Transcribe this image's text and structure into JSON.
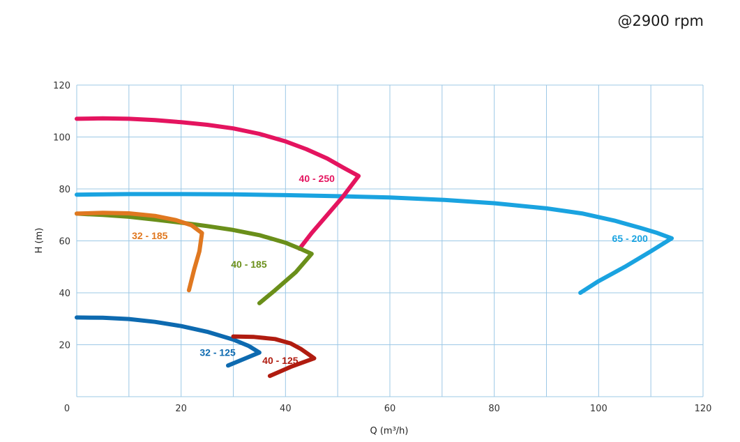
{
  "title": "@2900 rpm",
  "chart_data": {
    "type": "line",
    "xlabel": "Q (m³/h)",
    "ylabel": "H (m)",
    "xlim": [
      0,
      120
    ],
    "ylim": [
      0,
      120
    ],
    "x_ticks": [
      0,
      20,
      40,
      60,
      80,
      100,
      120
    ],
    "y_ticks": [
      20,
      40,
      60,
      80,
      100,
      120
    ],
    "grid": true,
    "series": [
      {
        "name": "65 - 200",
        "color": "#1aa3e0",
        "points": [
          [
            0,
            77.8
          ],
          [
            10,
            78
          ],
          [
            20,
            78
          ],
          [
            30,
            77.9
          ],
          [
            40,
            77.6
          ],
          [
            50,
            77.2
          ],
          [
            60,
            76.7
          ],
          [
            70,
            75.8
          ],
          [
            80,
            74.5
          ],
          [
            90,
            72.5
          ],
          [
            97,
            70.5
          ],
          [
            103,
            67.8
          ],
          [
            108,
            65
          ],
          [
            111,
            63.2
          ],
          [
            114,
            61
          ],
          [
            110,
            56
          ],
          [
            105,
            50
          ],
          [
            100,
            44.5
          ],
          [
            96.5,
            40
          ]
        ],
        "label_at": [
          106,
          61
        ]
      },
      {
        "name": "40 - 250",
        "color": "#e4145f",
        "points": [
          [
            0,
            107
          ],
          [
            5,
            107.2
          ],
          [
            10,
            107
          ],
          [
            15,
            106.5
          ],
          [
            20,
            105.7
          ],
          [
            25,
            104.7
          ],
          [
            30,
            103.3
          ],
          [
            35,
            101.2
          ],
          [
            40,
            98.3
          ],
          [
            44,
            95.3
          ],
          [
            48,
            91.7
          ],
          [
            51,
            88.3
          ],
          [
            54,
            85
          ],
          [
            51,
            77
          ],
          [
            48,
            70
          ],
          [
            45,
            63
          ],
          [
            42.7,
            57
          ]
        ],
        "label_at": [
          46,
          84
        ]
      },
      {
        "name": "40 - 185",
        "color": "#6a8f1a",
        "points": [
          [
            0,
            70.5
          ],
          [
            5,
            70
          ],
          [
            10,
            69.3
          ],
          [
            15,
            68.2
          ],
          [
            20,
            67
          ],
          [
            25,
            65.7
          ],
          [
            30,
            64.2
          ],
          [
            35,
            62.2
          ],
          [
            40,
            59.3
          ],
          [
            43,
            56.8
          ],
          [
            45,
            55
          ],
          [
            42,
            48
          ],
          [
            38,
            41
          ],
          [
            35,
            36
          ]
        ],
        "label_at": [
          33,
          51
        ]
      },
      {
        "name": "32 - 185",
        "color": "#e07820",
        "points": [
          [
            0,
            70.5
          ],
          [
            5,
            70.8
          ],
          [
            10,
            70.6
          ],
          [
            15,
            69.6
          ],
          [
            19,
            68
          ],
          [
            22,
            66
          ],
          [
            24,
            63
          ],
          [
            23.5,
            56
          ],
          [
            22.5,
            49
          ],
          [
            21.5,
            41
          ]
        ],
        "label_at": [
          14,
          62
        ]
      },
      {
        "name": "32 - 125",
        "color": "#0d6ab0",
        "points": [
          [
            0,
            30.5
          ],
          [
            5,
            30.4
          ],
          [
            10,
            29.9
          ],
          [
            15,
            28.8
          ],
          [
            20,
            27.2
          ],
          [
            25,
            25
          ],
          [
            30,
            22
          ],
          [
            33,
            19.5
          ],
          [
            35,
            17
          ],
          [
            32,
            14.5
          ],
          [
            29,
            12
          ]
        ],
        "label_at": [
          27,
          17
        ]
      },
      {
        "name": "40 - 125",
        "color": "#b01c10",
        "points": [
          [
            30,
            23.2
          ],
          [
            34,
            23
          ],
          [
            38,
            22.2
          ],
          [
            41,
            20.5
          ],
          [
            43,
            18.3
          ],
          [
            45.5,
            14.8
          ],
          [
            41,
            11.5
          ],
          [
            37,
            8
          ]
        ],
        "label_at": [
          39,
          14
        ]
      }
    ]
  }
}
